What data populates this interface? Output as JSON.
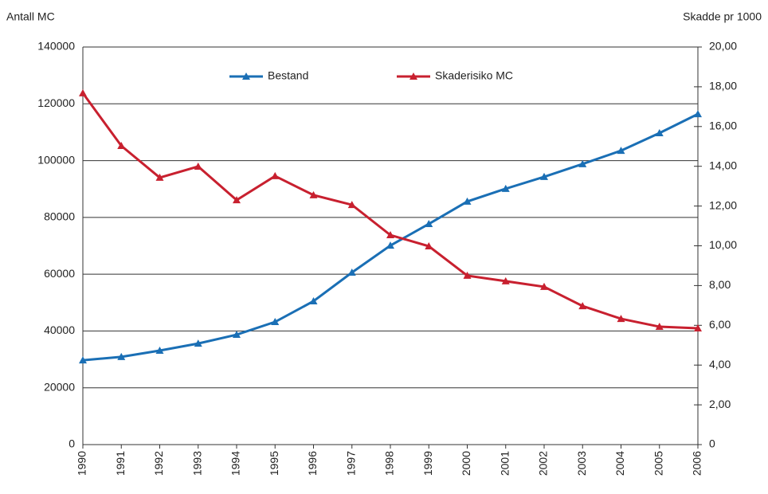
{
  "chart_data": {
    "type": "line",
    "y_label": "Antall MC",
    "y2_label": "Skadde pr 1000",
    "categories": [
      "1990",
      "1991",
      "1992",
      "1993",
      "1994",
      "1995",
      "1996",
      "1997",
      "1998",
      "1999",
      "2000",
      "2001",
      "2002",
      "2003",
      "2004",
      "2005",
      "2006"
    ],
    "series": [
      {
        "name": "Bestand",
        "color": "#1a6fb5",
        "values": [
          29700,
          30900,
          33100,
          35600,
          38700,
          43200,
          50500,
          60600,
          70100,
          77700,
          85600,
          90100,
          94300,
          98800,
          103500,
          109700,
          116400
        ]
      },
      {
        "name": "Skaderisiko MC",
        "color": "#c8202f",
        "axis": "y2",
        "values": [
          17.68,
          15.03,
          13.43,
          13.99,
          12.3,
          13.51,
          12.55,
          12.06,
          10.54,
          9.98,
          8.5,
          8.22,
          7.94,
          6.97,
          6.33,
          5.93,
          5.85
        ]
      }
    ],
    "ylim": [
      0,
      140000
    ],
    "yticks": [
      0,
      20000,
      40000,
      60000,
      80000,
      100000,
      120000,
      140000
    ],
    "y2lim": [
      0,
      20
    ],
    "y2ticks": [
      0,
      {
        "value": 2,
        "label": "2,00"
      },
      {
        "value": 4,
        "label": "4,00"
      },
      {
        "value": 6,
        "label": "6,00"
      },
      {
        "value": 8,
        "label": "8,00"
      },
      {
        "value": 10,
        "label": "10,00"
      },
      {
        "value": 12,
        "label": "12,00"
      },
      {
        "value": 14,
        "label": "14,00"
      },
      {
        "value": 16,
        "label": "16,00"
      },
      {
        "value": 18,
        "label": "18,00"
      },
      {
        "value": 20,
        "label": "20,00"
      }
    ],
    "grid": true
  }
}
